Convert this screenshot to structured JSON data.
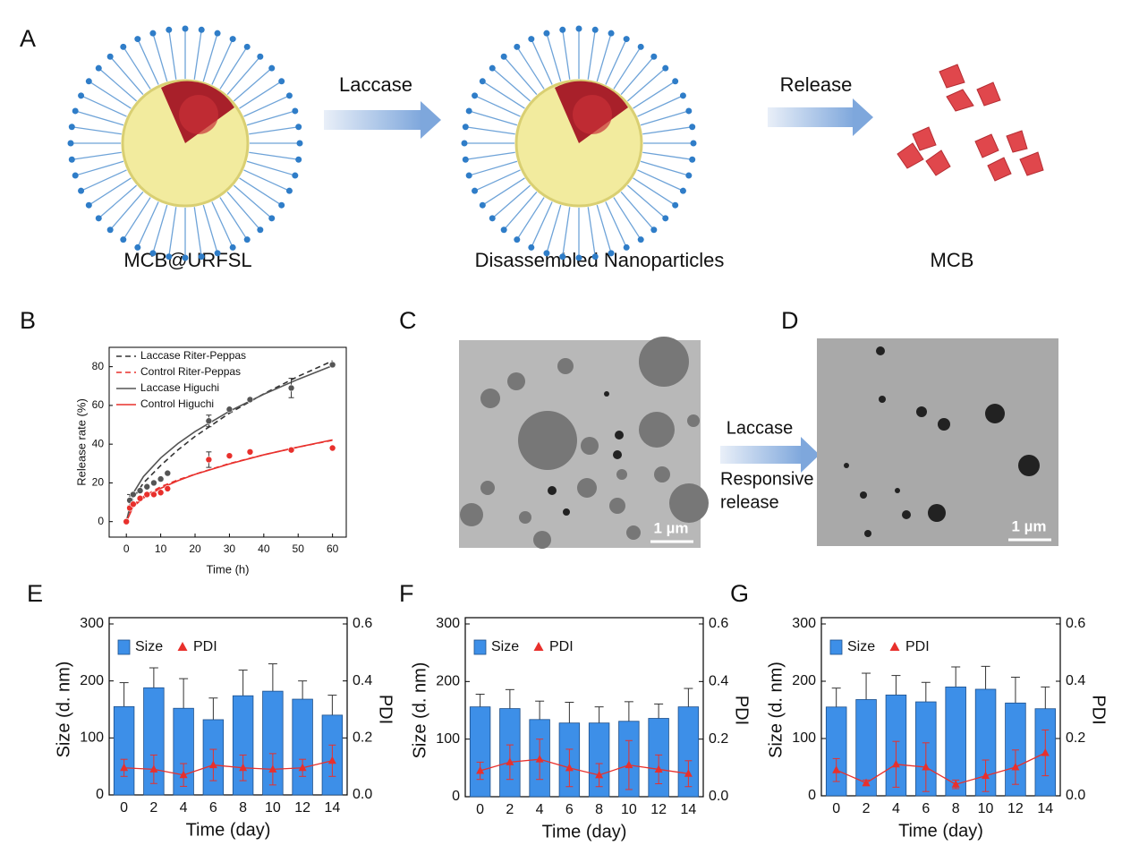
{
  "figure": {
    "panel_labels": [
      "A",
      "B",
      "C",
      "D",
      "E",
      "F",
      "G"
    ],
    "scheme": {
      "step1": "Laccase",
      "step2": "Release",
      "labels": [
        "MCB@URFSL",
        "Disassembled Nanoparticles",
        "MCB"
      ]
    },
    "tem": {
      "scale_bar_c": "1 µm",
      "scale_bar_d": "1 µm",
      "arrow_top": "Laccase",
      "arrow_bottom": [
        "Responsive",
        "release"
      ]
    }
  },
  "chart_data": [
    {
      "type": "scatter",
      "xlabel": "Time (h)",
      "ylabel": "Release rate (%)",
      "xlim": [
        -5,
        64
      ],
      "ylim": [
        -8,
        90
      ],
      "xticks": [
        0,
        10,
        20,
        30,
        40,
        50,
        60
      ],
      "yticks": [
        0,
        20,
        40,
        60,
        80
      ],
      "legend": "upper left",
      "series": [
        {
          "name": "Laccase Riter-Peppas",
          "color": "#333333",
          "style": "dashed",
          "x": [
            0,
            2,
            5,
            10,
            15,
            20,
            30,
            40,
            50,
            60
          ],
          "values": [
            0,
            12,
            20,
            29,
            37,
            44,
            56,
            66,
            75,
            83
          ]
        },
        {
          "name": "Control Riter-Peppas",
          "color": "#e8302c",
          "style": "dashed",
          "x": [
            0,
            2,
            5,
            10,
            15,
            20,
            30,
            40,
            50,
            60
          ],
          "values": [
            0,
            8.5,
            13,
            18,
            21.5,
            24.5,
            30,
            34.5,
            38.5,
            42
          ]
        },
        {
          "name": "Laccase Higuchi",
          "color": "#555555",
          "style": "solid",
          "x": [
            0,
            2,
            5,
            10,
            15,
            20,
            30,
            40,
            50,
            60
          ],
          "values": [
            0,
            14.7,
            23.3,
            32.9,
            40.3,
            46.5,
            57,
            65.8,
            73.5,
            80.5
          ]
        },
        {
          "name": "Control Higuchi",
          "color": "#e8302c",
          "style": "solid",
          "x": [
            0,
            2,
            5,
            10,
            15,
            20,
            30,
            40,
            50,
            60
          ],
          "values": [
            0,
            7.7,
            12.2,
            17.2,
            21.1,
            24.4,
            29.8,
            34.5,
            38.5,
            42.2
          ]
        },
        {
          "color": "#555555",
          "style": "markers",
          "x": [
            0,
            1,
            2,
            4,
            6,
            8,
            10,
            12,
            24,
            30,
            36,
            48,
            60
          ],
          "values": [
            0,
            11,
            14,
            16,
            18,
            20,
            22,
            25,
            52,
            58,
            63,
            69,
            81
          ],
          "errors": [
            0,
            3,
            0,
            0,
            0,
            0,
            0,
            0,
            3,
            0,
            0,
            5,
            1
          ]
        },
        {
          "color": "#e8302c",
          "style": "markers",
          "x": [
            0,
            1,
            2,
            4,
            6,
            8,
            10,
            12,
            24,
            30,
            36,
            48,
            60
          ],
          "values": [
            0,
            7,
            9,
            12,
            14,
            14,
            15,
            17,
            32,
            34,
            36,
            37,
            38
          ],
          "errors": [
            0,
            1,
            0,
            0,
            0,
            0,
            0,
            0,
            4,
            0,
            0,
            0,
            0
          ]
        }
      ]
    },
    {
      "type": "bar",
      "xlabel": "Time (day)",
      "ylabel": "Size (d. nm)",
      "y2label": "PDI",
      "categories": [
        "0",
        "2",
        "4",
        "6",
        "8",
        "10",
        "12",
        "14"
      ],
      "ylim": [
        0,
        300
      ],
      "yticks": [
        0,
        100,
        200,
        300
      ],
      "y2lim": [
        0,
        0.6
      ],
      "y2ticks": [
        {
          "value": 0,
          "label": "0.0"
        },
        0.2,
        0.4,
        0.6
      ],
      "legend": "upper left",
      "series": [
        {
          "name": "Size",
          "color": "#3d8fe8",
          "values": [
            155,
            188,
            152,
            132,
            174,
            182,
            168,
            140
          ],
          "errors": [
            42,
            35,
            52,
            38,
            45,
            48,
            32,
            35
          ]
        },
        {
          "name": "PDI",
          "color": "#e8302c",
          "axis": "y2",
          "values": [
            0.095,
            0.09,
            0.07,
            0.105,
            0.095,
            0.09,
            0.095,
            0.12
          ],
          "errors": [
            0.03,
            0.05,
            0.04,
            0.055,
            0.045,
            0.055,
            0.03,
            0.055
          ]
        }
      ]
    },
    {
      "type": "bar",
      "xlabel": "Time (day)",
      "ylabel": "Size (d. nm)",
      "y2label": "PDI",
      "categories": [
        "0",
        "2",
        "4",
        "6",
        "8",
        "10",
        "12",
        "14"
      ],
      "ylim": [
        0,
        300
      ],
      "yticks": [
        0,
        100,
        200,
        300
      ],
      "y2lim": [
        0,
        0.6
      ],
      "y2ticks": [
        {
          "value": 0,
          "label": "0.0"
        },
        0.2,
        0.4,
        0.6
      ],
      "legend": "upper left",
      "series": [
        {
          "name": "Size",
          "color": "#3d8fe8",
          "values": [
            156,
            153,
            134,
            128,
            128,
            131,
            136,
            156
          ],
          "errors": [
            22,
            33,
            32,
            36,
            28,
            34,
            25,
            32
          ]
        },
        {
          "name": "PDI",
          "color": "#e8302c",
          "axis": "y2",
          "values": [
            0.09,
            0.12,
            0.13,
            0.1,
            0.075,
            0.11,
            0.095,
            0.08
          ],
          "errors": [
            0.03,
            0.06,
            0.07,
            0.065,
            0.04,
            0.085,
            0.05,
            0.045
          ]
        }
      ]
    },
    {
      "type": "bar",
      "xlabel": "Time (day)",
      "ylabel": "Size (d. nm)",
      "y2label": "PDI",
      "categories": [
        "0",
        "2",
        "4",
        "6",
        "8",
        "10",
        "12",
        "14"
      ],
      "ylim": [
        0,
        300
      ],
      "yticks": [
        0,
        100,
        200,
        300
      ],
      "y2lim": [
        0,
        0.6
      ],
      "y2ticks": [
        {
          "value": 0,
          "label": "0.0"
        },
        0.2,
        0.4,
        0.6
      ],
      "legend": "upper left",
      "series": [
        {
          "name": "Size",
          "color": "#3d8fe8",
          "values": [
            155,
            168,
            176,
            164,
            190,
            186,
            162,
            152
          ],
          "errors": [
            33,
            46,
            34,
            34,
            35,
            40,
            45,
            38
          ]
        },
        {
          "name": "PDI",
          "color": "#e8302c",
          "axis": "y2",
          "values": [
            0.09,
            0.045,
            0.11,
            0.1,
            0.04,
            0.07,
            0.1,
            0.15
          ],
          "errors": [
            0.04,
            0.01,
            0.08,
            0.085,
            0.015,
            0.055,
            0.06,
            0.08
          ]
        }
      ]
    }
  ]
}
